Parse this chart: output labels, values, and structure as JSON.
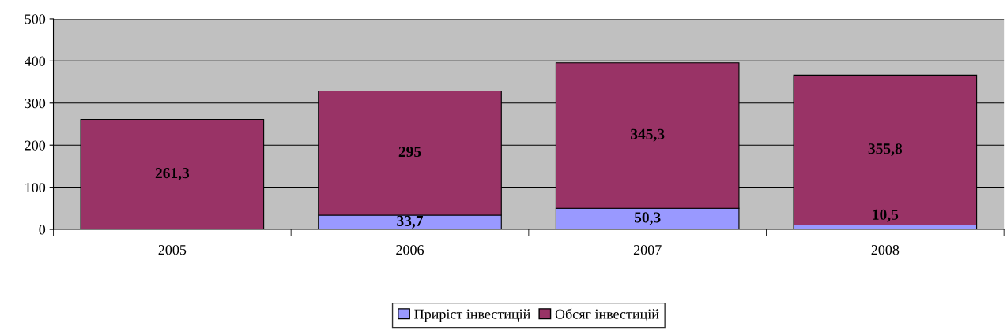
{
  "chart_data": {
    "type": "bar",
    "stacked": true,
    "categories": [
      "2005",
      "2006",
      "2007",
      "2008"
    ],
    "series": [
      {
        "name": "Приріст інвестицій",
        "color": "#9999ff",
        "values": [
          null,
          33.7,
          50.3,
          10.5
        ],
        "value_labels": [
          null,
          "33,7",
          "50,3",
          "10,5"
        ]
      },
      {
        "name": "Обсяг інвестицій",
        "color": "#993366",
        "values": [
          261.3,
          295,
          345.3,
          355.8
        ],
        "value_labels": [
          "261,3",
          "295",
          "345,3",
          "355,8"
        ]
      }
    ],
    "ylim": [
      0,
      500
    ],
    "yticks": [
      0,
      100,
      200,
      300,
      400,
      500
    ],
    "grid": "y",
    "legend": "bottom"
  }
}
